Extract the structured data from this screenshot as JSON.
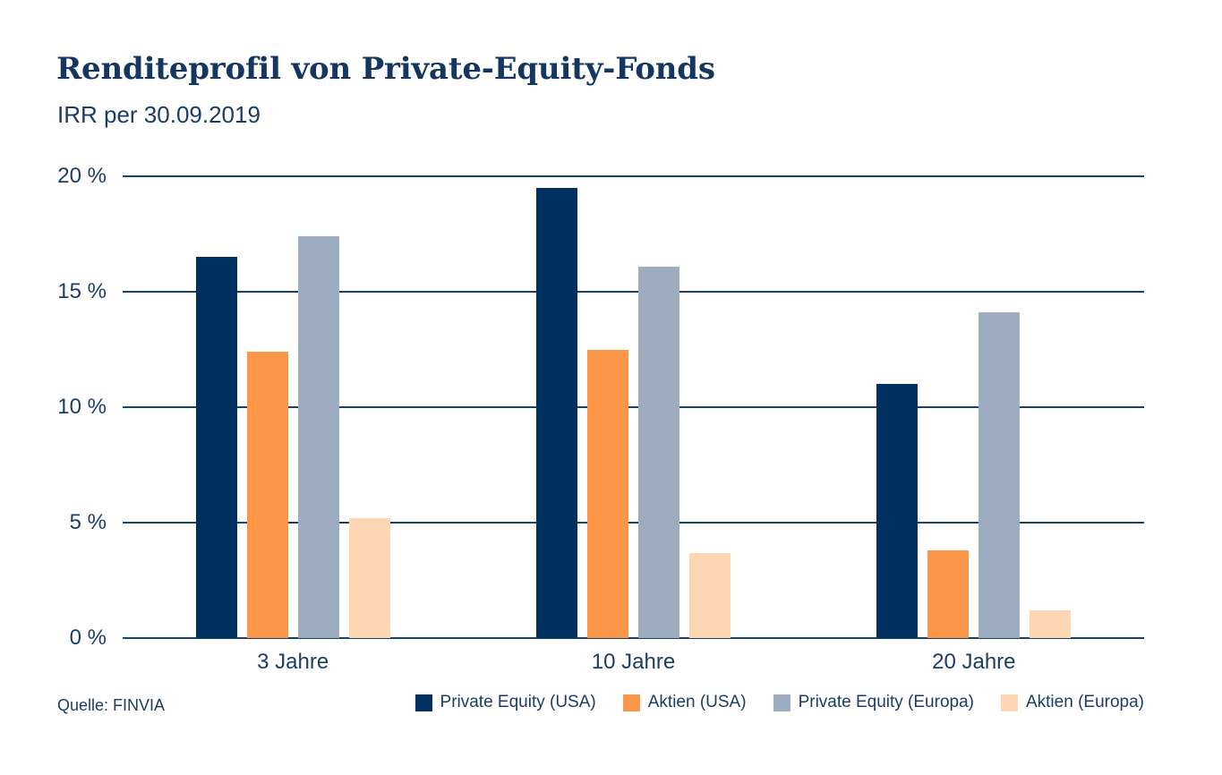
{
  "header": {
    "title": "Renditeprofil von Private-Equity-Fonds",
    "subtitle": "IRR per 30.09.2019"
  },
  "source_label": "Quelle: FINVIA",
  "colors": {
    "ink": "#1b3d66",
    "title_ink": "#14365f",
    "gridline": "#1c4166",
    "background": "#ffffff",
    "pe_usa": "#00305f",
    "aktien_usa": "#fc9749",
    "pe_europa": "#9dacc0",
    "aktien_europa": "#fdd6b3"
  },
  "chart_data": {
    "type": "bar",
    "title": "Renditeprofil von Private-Equity-Fonds",
    "subtitle": "IRR per 30.09.2019",
    "categories": [
      "3 Jahre",
      "10 Jahre",
      "20 Jahre"
    ],
    "series": [
      {
        "name": "Private Equity (USA)",
        "color": "#00305f",
        "values": [
          16.5,
          19.5,
          11.0
        ]
      },
      {
        "name": "Aktien (USA)",
        "color": "#fc9749",
        "values": [
          12.4,
          12.5,
          3.8
        ]
      },
      {
        "name": "Private Equity (Europa)",
        "color": "#9dacc0",
        "values": [
          17.4,
          16.1,
          14.1
        ]
      },
      {
        "name": "Aktien (Europa)",
        "color": "#fdd6b3",
        "values": [
          5.2,
          3.7,
          1.2
        ]
      }
    ],
    "ylabel": "",
    "xlabel": "",
    "ylim": [
      0,
      20
    ],
    "yticks": [
      {
        "value": 20,
        "label": "20 %"
      },
      {
        "value": 15,
        "label": "15 %"
      },
      {
        "value": 10,
        "label": "10 %"
      },
      {
        "value": 5,
        "label": "5 %"
      },
      {
        "value": 0,
        "label": "0 %"
      }
    ],
    "grid": true,
    "legend_position": "bottom-right"
  }
}
